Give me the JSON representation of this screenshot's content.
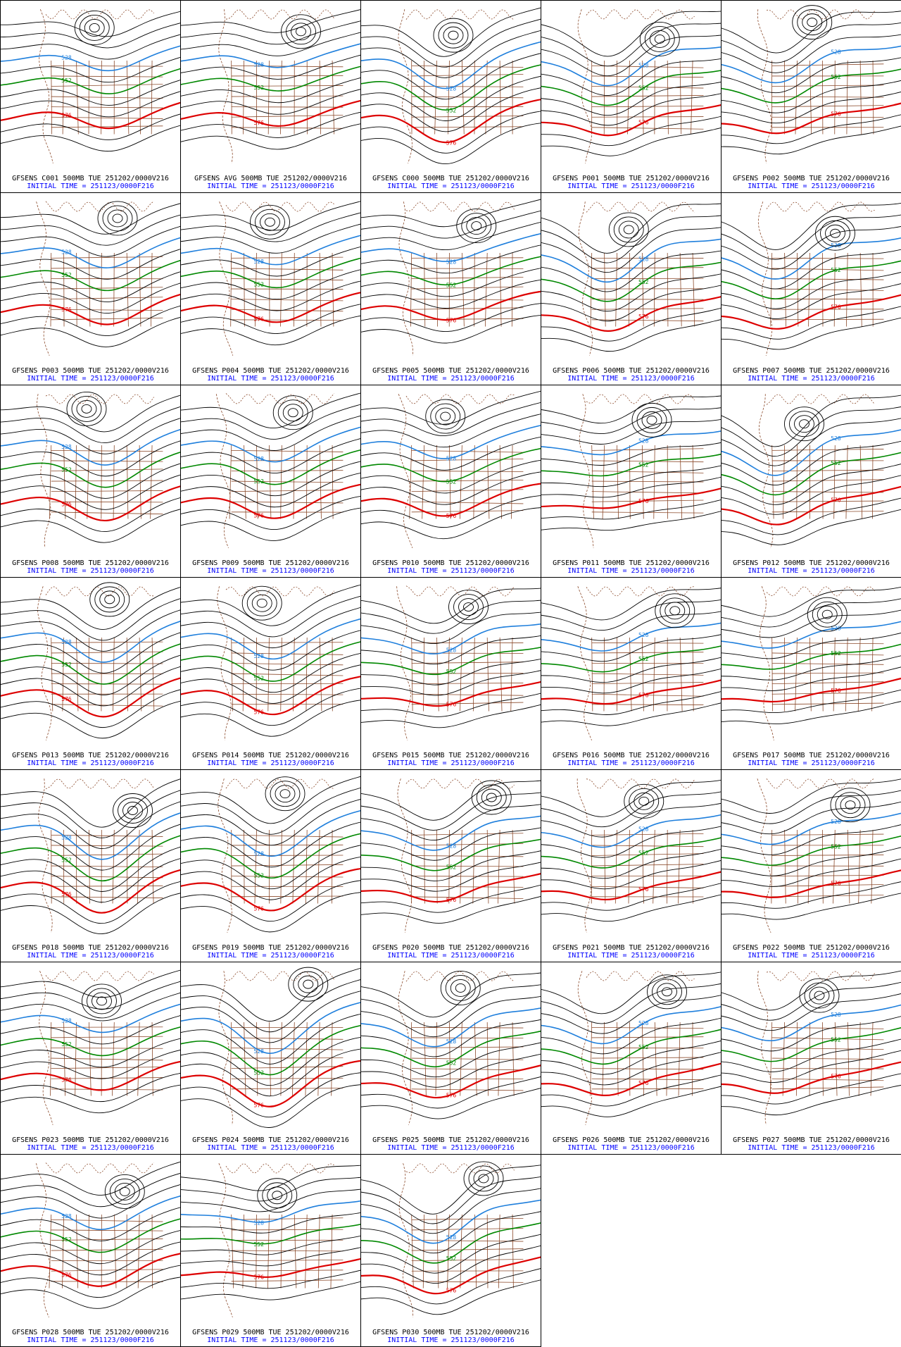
{
  "colors": {
    "height_contour": "#000000",
    "contour_552": "#008800",
    "contour_576": "#dd0000",
    "contour_528": "#1f7fdc",
    "geography": "#8b4a2b",
    "caption_line1": "#000000",
    "caption_line2": "#0000ff"
  },
  "contour_labels": {
    "low": "528",
    "mid": "552",
    "high": "576"
  },
  "panels": [
    {
      "title": "GFSENS C001 500MB TUE 251202/0000V216",
      "init": "INITIAL TIME = 251123/0000F216"
    },
    {
      "title": "GFSENS AVG 500MB TUE 251202/0000V216",
      "init": "INITIAL TIME = 251123/0000F216"
    },
    {
      "title": "GFSENS C000 500MB TUE 251202/0000V216",
      "init": "INITIAL TIME = 251123/0000F216"
    },
    {
      "title": "GFSENS P001 500MB TUE 251202/0000V216",
      "init": "INITIAL TIME = 251123/0000F216"
    },
    {
      "title": "GFSENS P002 500MB TUE 251202/0000V216",
      "init": "INITIAL TIME = 251123/0000F216"
    },
    {
      "title": "GFSENS P003 500MB TUE 251202/0000V216",
      "init": "INITIAL TIME = 251123/0000F216"
    },
    {
      "title": "GFSENS P004 500MB TUE 251202/0000V216",
      "init": "INITIAL TIME = 251123/0000F216"
    },
    {
      "title": "GFSENS P005 500MB TUE 251202/0000V216",
      "init": "INITIAL TIME = 251123/0000F216"
    },
    {
      "title": "GFSENS P006 500MB TUE 251202/0000V216",
      "init": "INITIAL TIME = 251123/0000F216"
    },
    {
      "title": "GFSENS P007 500MB TUE 251202/0000V216",
      "init": "INITIAL TIME = 251123/0000F216"
    },
    {
      "title": "GFSENS P008 500MB TUE 251202/0000V216",
      "init": "INITIAL TIME = 251123/0000F216"
    },
    {
      "title": "GFSENS P009 500MB TUE 251202/0000V216",
      "init": "INITIAL TIME = 251123/0000F216"
    },
    {
      "title": "GFSENS P010 500MB TUE 251202/0000V216",
      "init": "INITIAL TIME = 251123/0000F216"
    },
    {
      "title": "GFSENS P011 500MB TUE 251202/0000V216",
      "init": "INITIAL TIME = 251123/0000F216"
    },
    {
      "title": "GFSENS P012 500MB TUE 251202/0000V216",
      "init": "INITIAL TIME = 251123/0000F216"
    },
    {
      "title": "GFSENS P013 500MB TUE 251202/0000V216",
      "init": "INITIAL TIME = 251123/0000F216"
    },
    {
      "title": "GFSENS P014 500MB TUE 251202/0000V216",
      "init": "INITIAL TIME = 251123/0000F216"
    },
    {
      "title": "GFSENS P015 500MB TUE 251202/0000V216",
      "init": "INITIAL TIME = 251123/0000F216"
    },
    {
      "title": "GFSENS P016 500MB TUE 251202/0000V216",
      "init": "INITIAL TIME = 251123/0000F216"
    },
    {
      "title": "GFSENS P017 500MB TUE 251202/0000V216",
      "init": "INITIAL TIME = 251123/0000F216"
    },
    {
      "title": "GFSENS P018 500MB TUE 251202/0000V216",
      "init": "INITIAL TIME = 251123/0000F216"
    },
    {
      "title": "GFSENS P019 500MB TUE 251202/0000V216",
      "init": "INITIAL TIME = 251123/0000F216"
    },
    {
      "title": "GFSENS P020 500MB TUE 251202/0000V216",
      "init": "INITIAL TIME = 251123/0000F216"
    },
    {
      "title": "GFSENS P021 500MB TUE 251202/0000V216",
      "init": "INITIAL TIME = 251123/0000F216"
    },
    {
      "title": "GFSENS P022 500MB TUE 251202/0000V216",
      "init": "INITIAL TIME = 251123/0000F216"
    },
    {
      "title": "GFSENS P023 500MB TUE 251202/0000V216",
      "init": "INITIAL TIME = 251123/0000F216"
    },
    {
      "title": "GFSENS P024 500MB TUE 251202/0000V216",
      "init": "INITIAL TIME = 251123/0000F216"
    },
    {
      "title": "GFSENS P025 500MB TUE 251202/0000V216",
      "init": "INITIAL TIME = 251123/0000F216"
    },
    {
      "title": "GFSENS P026 500MB TUE 251202/0000V216",
      "init": "INITIAL TIME = 251123/0000F216"
    },
    {
      "title": "GFSENS P027 500MB TUE 251202/0000V216",
      "init": "INITIAL TIME = 251123/0000F216"
    },
    {
      "title": "GFSENS P028 500MB TUE 251202/0000V216",
      "init": "INITIAL TIME = 251123/0000F216"
    },
    {
      "title": "GFSENS P029 500MB TUE 251202/0000V216",
      "init": "INITIAL TIME = 251123/0000F216"
    },
    {
      "title": "GFSENS P030 500MB TUE 251202/0000V216",
      "init": "INITIAL TIME = 251123/0000F216"
    }
  ]
}
